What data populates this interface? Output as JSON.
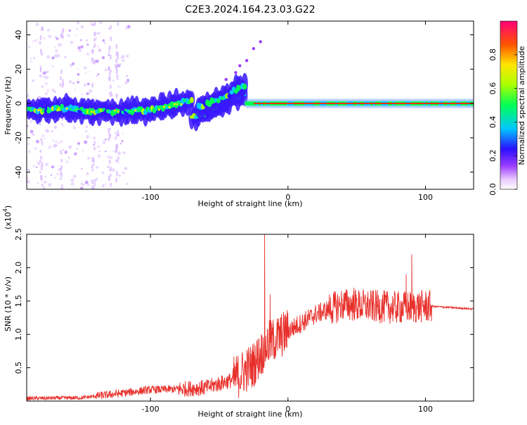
{
  "title": "C2E3.2024.164.23.03.G22",
  "chart_data": [
    {
      "type": "heatmap",
      "xlabel": "Height of straight line (km)",
      "ylabel": "Frequency (Hz)",
      "xlim": [
        -190,
        135
      ],
      "ylim": [
        -50,
        48
      ],
      "xticks": [
        -100,
        0,
        100
      ],
      "yticks": [
        -40,
        -20,
        0,
        20,
        40
      ],
      "xtick_labels": [
        "-100",
        "0",
        "100"
      ],
      "ytick_labels": [
        "-40",
        "-20",
        "0",
        "20",
        "40"
      ],
      "colorbar": {
        "label": "Normalized spectral amplitude",
        "range": [
          0,
          1
        ],
        "ticks": [
          0.0,
          0.2,
          0.4,
          0.6,
          0.8
        ],
        "tick_labels": [
          "0.0",
          "0.2",
          "0.4",
          "0.6",
          "0.8"
        ]
      },
      "ridges": [
        {
          "x": [
            -190,
            -160,
            -130,
            -100,
            -90,
            -80,
            -70
          ],
          "y": [
            -4,
            -3,
            -5,
            -4,
            -2,
            0,
            2
          ]
        },
        {
          "x": [
            -70,
            -60,
            -50,
            -40,
            -30
          ],
          "y": [
            -8,
            -5,
            -1,
            3,
            6
          ]
        },
        {
          "x": [
            -65,
            -55,
            -45,
            -38,
            -30
          ],
          "y": [
            -2,
            1,
            4,
            8,
            11
          ]
        },
        {
          "x": [
            -30,
            0,
            50,
            100,
            135
          ],
          "y": [
            0,
            0,
            0,
            0,
            0
          ]
        }
      ]
    },
    {
      "type": "line",
      "xlabel": "Height of straight line (km)",
      "ylabel": "SNR (10 * v/v)",
      "multiplier": "(x10",
      "multiplier_exp": "4",
      "xlim": [
        -190,
        135
      ],
      "ylim": [
        0,
        2.5
      ],
      "xticks": [
        -100,
        0,
        100
      ],
      "yticks": [
        0.5,
        1.0,
        1.5,
        2.0,
        2.5
      ],
      "xtick_labels": [
        "-100",
        "0",
        "100"
      ],
      "ytick_labels": [
        "0.5",
        "1.0",
        "1.5",
        "2.0",
        "2.5"
      ],
      "series_color": "#e8302b",
      "envelope": {
        "x": [
          -190,
          -150,
          -120,
          -100,
          -80,
          -60,
          -40,
          -25,
          -15,
          0,
          20,
          40,
          60,
          80,
          100,
          105,
          135
        ],
        "y": [
          0.04,
          0.05,
          0.12,
          0.17,
          0.18,
          0.2,
          0.32,
          0.55,
          0.85,
          1.05,
          1.3,
          1.45,
          1.42,
          1.4,
          1.42,
          1.42,
          1.38
        ]
      },
      "spikes": [
        {
          "x": -17,
          "y": 2.5
        },
        {
          "x": 90,
          "y": 2.2
        },
        {
          "x": 86,
          "y": 1.9
        },
        {
          "x": 48,
          "y": 1.7
        },
        {
          "x": -13,
          "y": 1.6
        }
      ]
    }
  ]
}
